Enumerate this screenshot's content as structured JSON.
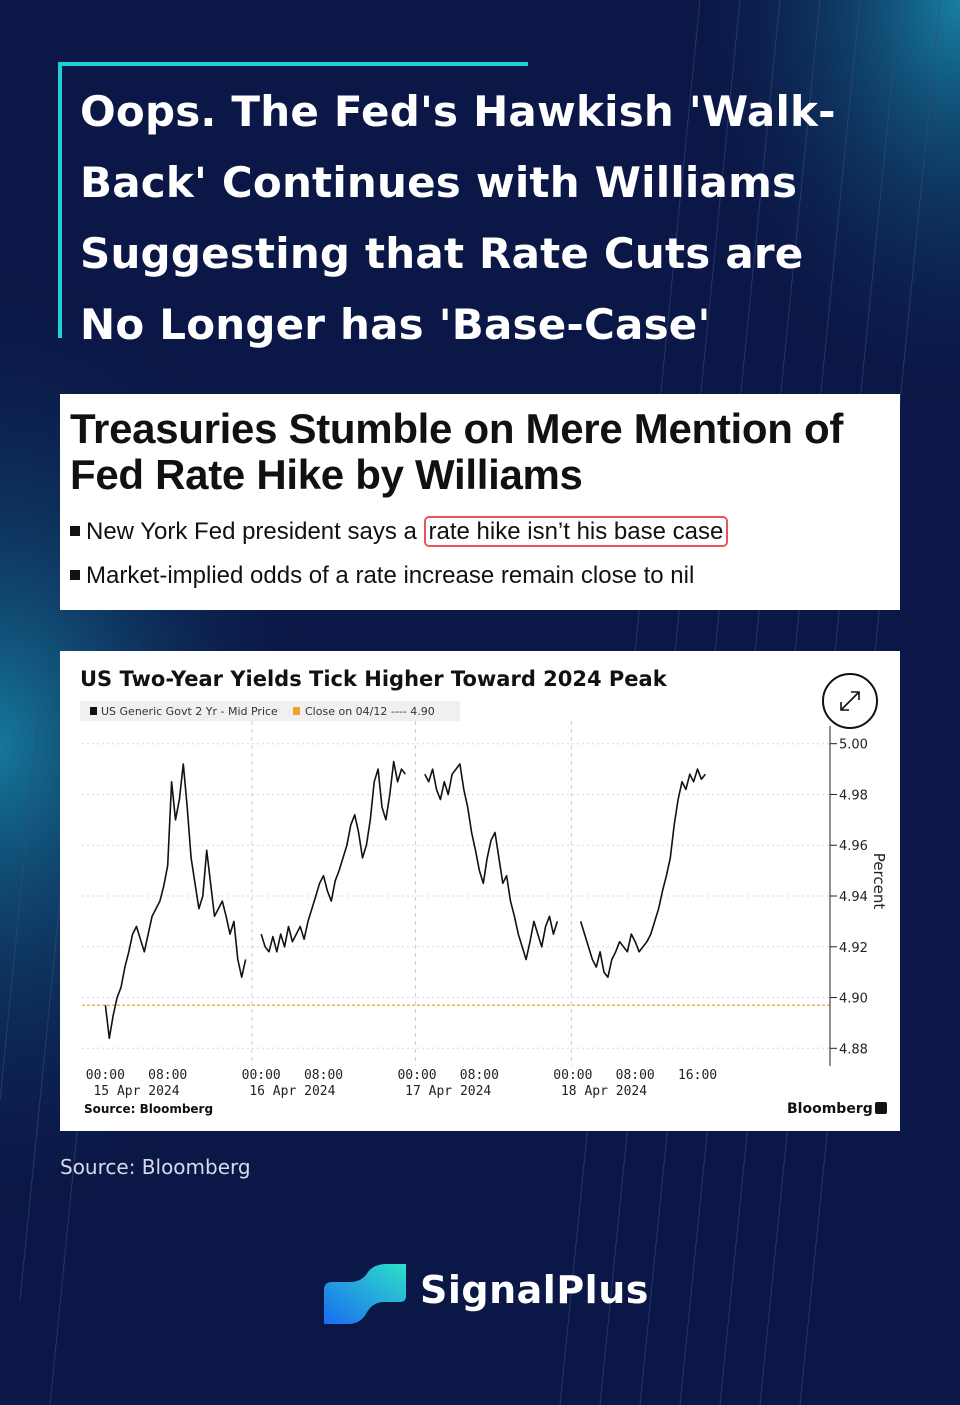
{
  "slide": {
    "title": "Oops.  The Fed's Hawkish 'Walk-Back' Continues with Williams Suggesting that Rate Cuts are No Longer has 'Base-Case'",
    "source": "Source: Bloomberg",
    "brand": "SignalPlus",
    "accent_color": "#1fd1d6",
    "background_color": "#0b1746"
  },
  "article": {
    "headline": "Treasuries Stumble on Mere Mention of Fed Rate Hike by Williams",
    "bullet1_prefix": "New York Fed president says a ",
    "bullet1_highlight": "rate hike isn’t his base case",
    "bullet2": "Market-implied odds of a rate increase remain close to nil"
  },
  "chart_data": {
    "type": "line",
    "title": "US Two-Year Yields Tick Higher Toward 2024 Peak",
    "legend": [
      "US Generic Govt 2 Yr - Mid Price",
      "Close on 04/12 ---- 4.90"
    ],
    "ylabel": "Percent",
    "ylim": [
      4.875,
      5.005
    ],
    "yticks": [
      "5.00",
      "4.98",
      "4.96",
      "4.94",
      "4.92",
      "4.90",
      "4.88"
    ],
    "reference_line": {
      "label": "Close on 04/12",
      "value": 4.897,
      "color": "#f0a030"
    },
    "x_tick_labels": [
      "00:00",
      "08:00",
      "00:00",
      "08:00",
      "00:00",
      "08:00",
      "00:00",
      "08:00",
      "16:00"
    ],
    "date_labels": [
      "15 Apr 2024",
      "16 Apr 2024",
      "17 Apr 2024",
      "18 Apr 2024"
    ],
    "x_unit": "hours since 00:00 15 Apr 2024",
    "xlim": [
      -3,
      93
    ],
    "series": [
      {
        "name": "15 Apr",
        "x": [
          0,
          0.5,
          1,
          1.5,
          2,
          2.5,
          3,
          3.5,
          4,
          4.5,
          5,
          5.5,
          6,
          6.5,
          7,
          7.5,
          8,
          8.5,
          9,
          9.5,
          10,
          10.5,
          11,
          11.5,
          12,
          12.5,
          13,
          13.5,
          14,
          14.5,
          15,
          15.5,
          16,
          16.5,
          17,
          17.5,
          18
        ],
        "values": [
          4.897,
          4.884,
          4.893,
          4.9,
          4.904,
          4.912,
          4.918,
          4.925,
          4.928,
          4.923,
          4.918,
          4.925,
          4.932,
          4.935,
          4.938,
          4.944,
          4.952,
          4.985,
          4.97,
          4.978,
          4.992,
          4.975,
          4.955,
          4.945,
          4.935,
          4.94,
          4.958,
          4.945,
          4.932,
          4.935,
          4.938,
          4.932,
          4.925,
          4.93,
          4.915,
          4.908,
          4.915
        ]
      },
      {
        "name": "16 Apr",
        "x": [
          20,
          20.5,
          21,
          21.5,
          22,
          22.5,
          23,
          23.5,
          24,
          24.5,
          25,
          25.5,
          26,
          26.5,
          27,
          27.5,
          28,
          28.5,
          29,
          29.5,
          30,
          30.5,
          31,
          31.5,
          32,
          32.5,
          33,
          33.5,
          34,
          34.5,
          35,
          35.5,
          36,
          36.5,
          37,
          37.5,
          38,
          38.5
        ],
        "values": [
          4.925,
          4.92,
          4.918,
          4.924,
          4.918,
          4.925,
          4.92,
          4.928,
          4.922,
          4.925,
          4.928,
          4.923,
          4.93,
          4.935,
          4.94,
          4.945,
          4.948,
          4.942,
          4.938,
          4.946,
          4.95,
          4.955,
          4.96,
          4.968,
          4.972,
          4.965,
          4.955,
          4.96,
          4.97,
          4.985,
          4.99,
          4.975,
          4.97,
          4.98,
          4.993,
          4.985,
          4.99,
          4.988
        ]
      },
      {
        "name": "17 Apr",
        "x": [
          41,
          41.5,
          42,
          42.5,
          43,
          43.5,
          44,
          44.5,
          45,
          45.5,
          46,
          46.5,
          47,
          47.5,
          48,
          48.5,
          49,
          49.5,
          50,
          50.5,
          51,
          51.5,
          52,
          52.5,
          53,
          53.5,
          54,
          54.5,
          55,
          55.5,
          56,
          56.5,
          57,
          57.5,
          58
        ],
        "values": [
          4.988,
          4.985,
          4.99,
          4.982,
          4.978,
          4.985,
          4.98,
          4.988,
          4.99,
          4.992,
          4.982,
          4.975,
          4.965,
          4.958,
          4.95,
          4.945,
          4.955,
          4.962,
          4.965,
          4.955,
          4.945,
          4.948,
          4.938,
          4.932,
          4.925,
          4.92,
          4.915,
          4.922,
          4.93,
          4.925,
          4.92,
          4.928,
          4.932,
          4.925,
          4.93
        ]
      },
      {
        "name": "18 Apr",
        "x": [
          61,
          61.5,
          62,
          62.5,
          63,
          63.5,
          64,
          64.5,
          65,
          65.5,
          66,
          66.5,
          67,
          67.5,
          68,
          68.5,
          69,
          69.5,
          70,
          70.5,
          71,
          71.5,
          72,
          72.5,
          73,
          73.5,
          74,
          74.5,
          75,
          75.5,
          76,
          76.5,
          77
        ],
        "values": [
          4.93,
          4.925,
          4.92,
          4.915,
          4.912,
          4.918,
          4.91,
          4.908,
          4.915,
          4.918,
          4.922,
          4.92,
          4.918,
          4.925,
          4.922,
          4.918,
          4.92,
          4.922,
          4.925,
          4.93,
          4.935,
          4.942,
          4.948,
          4.955,
          4.968,
          4.978,
          4.985,
          4.982,
          4.988,
          4.985,
          4.99,
          4.986,
          4.988
        ]
      }
    ],
    "source": "Source: Bloomberg",
    "brand": "Bloomberg"
  }
}
